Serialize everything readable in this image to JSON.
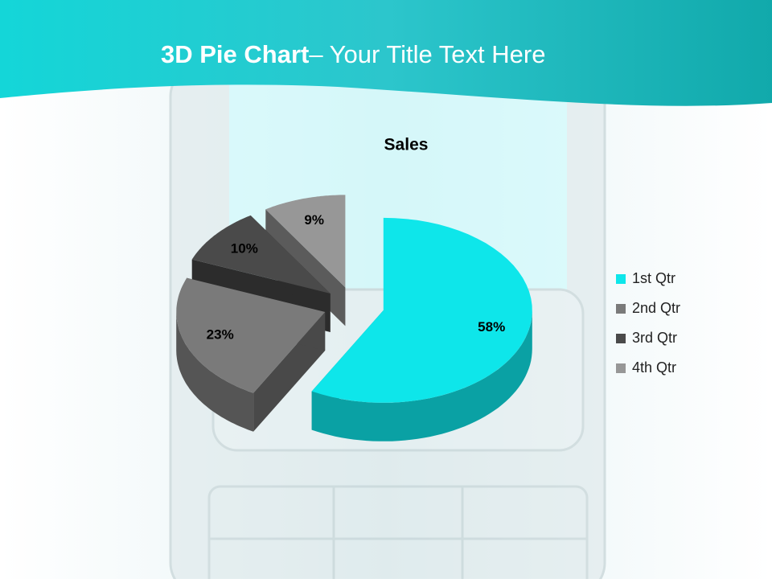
{
  "slide": {
    "title_bold": "3D Pie Chart",
    "title_rest": "– Your Title Text Here"
  },
  "chart_data": {
    "type": "pie",
    "title": "Sales",
    "categories": [
      "1st Qtr",
      "2nd Qtr",
      "3rd Qtr",
      "4th Qtr"
    ],
    "values": [
      58,
      23,
      10,
      9
    ],
    "value_labels": [
      "58%",
      "23%",
      "10%",
      "9%"
    ],
    "colors": [
      "#0ee6ea",
      "#7a7a7a",
      "#4a4a4a",
      "#979797"
    ],
    "legend": "right"
  }
}
